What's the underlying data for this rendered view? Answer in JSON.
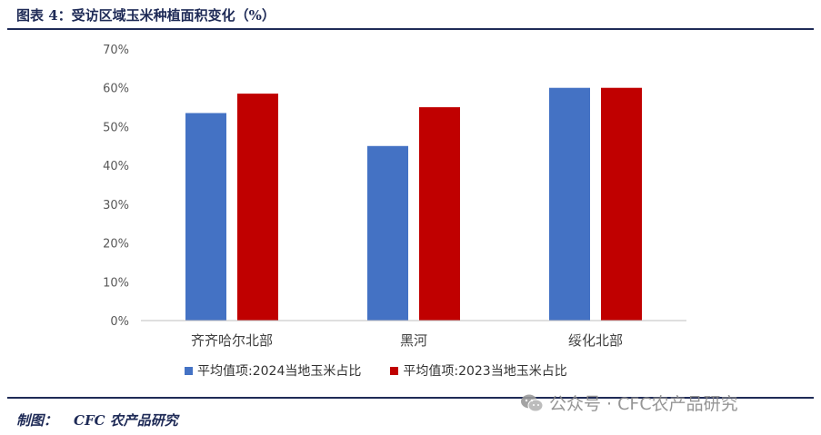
{
  "header": {
    "title": "图表 4：受访区域玉米种植面积变化（%）"
  },
  "chart_data": {
    "type": "bar",
    "categories": [
      "齐齐哈尔北部",
      "黑河",
      "绥化北部"
    ],
    "series": [
      {
        "name": "平均值项:2024当地玉米占比",
        "color": "#4472c4",
        "values": [
          53.5,
          45,
          60
        ]
      },
      {
        "name": "平均值项:2023当地玉米占比",
        "color": "#c00000",
        "values": [
          58.5,
          55,
          60
        ]
      }
    ],
    "ylim": [
      0,
      70
    ],
    "yticks": [
      "0%",
      "10%",
      "20%",
      "30%",
      "40%",
      "50%",
      "60%",
      "70%"
    ],
    "grid": false,
    "legend_position": "bottom"
  },
  "footer": {
    "label": "制图：",
    "source": "CFC 农产品研究"
  },
  "watermark": {
    "text": "公众号 · CFC农产品研究"
  }
}
